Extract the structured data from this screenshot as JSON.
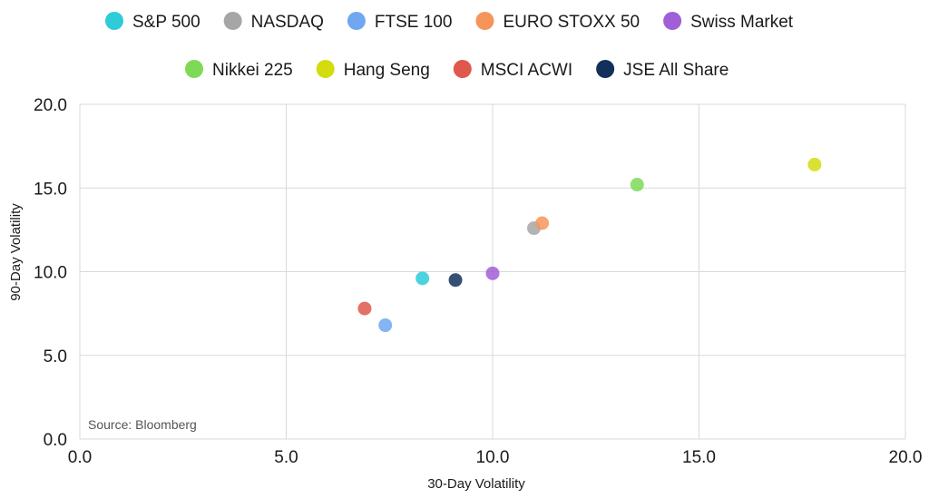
{
  "chart_data": {
    "type": "scatter",
    "title": "",
    "xlabel": "30-Day Volatility",
    "ylabel": "90-Day Volatility",
    "xlim": [
      0,
      20
    ],
    "ylim": [
      0,
      20
    ],
    "x_ticks": [
      "0.0",
      "5.0",
      "10.0",
      "15.0",
      "20.0"
    ],
    "y_ticks": [
      "0.0",
      "5.0",
      "10.0",
      "15.0",
      "20.0"
    ],
    "grid": true,
    "legend_position": "top",
    "source": "Source: Bloomberg",
    "series": [
      {
        "name": "S&P 500",
        "color": "#2ecbd9",
        "x": 8.3,
        "y": 9.6
      },
      {
        "name": "NASDAQ",
        "color": "#a6a6a6",
        "x": 11.0,
        "y": 12.6
      },
      {
        "name": "FTSE 100",
        "color": "#6fa8f0",
        "x": 7.4,
        "y": 6.8
      },
      {
        "name": "EURO STOXX 50",
        "color": "#f5955a",
        "x": 11.2,
        "y": 12.9
      },
      {
        "name": "Swiss Market",
        "color": "#a05fd6",
        "x": 10.0,
        "y": 9.9
      },
      {
        "name": "Nikkei 225",
        "color": "#7ed957",
        "x": 13.5,
        "y": 15.2
      },
      {
        "name": "Hang Seng",
        "color": "#d4dc0e",
        "x": 17.8,
        "y": 16.4
      },
      {
        "name": "MSCI ACWI",
        "color": "#e0574c",
        "x": 6.9,
        "y": 7.8
      },
      {
        "name": "JSE All Share",
        "color": "#14305a",
        "x": 9.1,
        "y": 9.5
      }
    ]
  }
}
